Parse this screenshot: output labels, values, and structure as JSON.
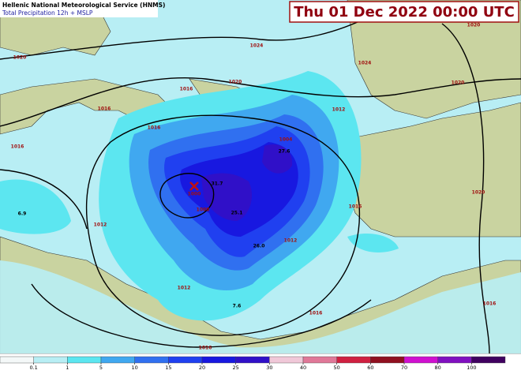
{
  "header": {
    "title": "Hellenic National Meteorological Service (HNMS)",
    "subtitle": "Total Precipitation 12h + MSLP"
  },
  "valid_time": "Thu 01 Dec 2022 00:00 UTC",
  "colorbar": {
    "levels": [
      0.1,
      1,
      5,
      10,
      15,
      20,
      25,
      30,
      40,
      50,
      60,
      70,
      80,
      100
    ],
    "colors": [
      "#f4f8f8",
      "#b8eef4",
      "#5ce6f0",
      "#40a8f0",
      "#3070f0",
      "#2040f0",
      "#1818e0",
      "#3010c8",
      "#f0c8d8",
      "#e07898",
      "#d02040",
      "#901020",
      "#d010d0",
      "#8010c0",
      "#400060"
    ]
  },
  "isobar_labels": [
    "1020",
    "1024",
    "1024",
    "1016",
    "1020",
    "1020",
    "1016",
    "1012",
    "1016",
    "1008",
    "1004",
    "1012",
    "1016",
    "1012",
    "1012",
    "1016",
    "1016",
    "1020",
    "1016",
    "1020",
    "1016"
  ],
  "low_label": "1000",
  "precip_labels": [
    "6.9",
    "31.7",
    "27.6",
    "25.1",
    "26.0",
    "7.6"
  ]
}
